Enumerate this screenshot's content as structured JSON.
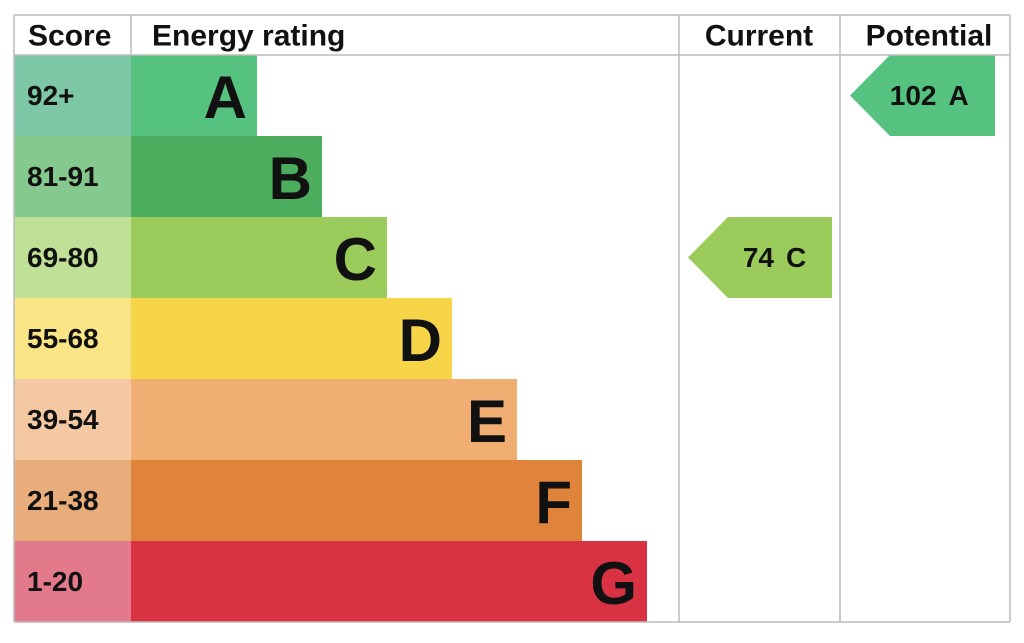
{
  "header": {
    "score": "Score",
    "rating": "Energy rating",
    "current": "Current",
    "potential": "Potential"
  },
  "bands": [
    {
      "range": "92+",
      "letter": "A",
      "color": "#55c27f",
      "score_color": "#7ec7a6"
    },
    {
      "range": "81-91",
      "letter": "B",
      "color": "#4dad5f",
      "score_color": "#86c98f"
    },
    {
      "range": "69-80",
      "letter": "C",
      "color": "#9bcb5a",
      "score_color": "#bfe097"
    },
    {
      "range": "55-68",
      "letter": "D",
      "color": "#f6d548",
      "score_color": "#fae586"
    },
    {
      "range": "39-54",
      "letter": "E",
      "color": "#f0ae72",
      "score_color": "#f4c8a3"
    },
    {
      "range": "21-38",
      "letter": "F",
      "color": "#e0833b",
      "score_color": "#e9ad7b"
    },
    {
      "range": "1-20",
      "letter": "G",
      "color": "#d93343",
      "score_color": "#e27a8b"
    }
  ],
  "current": {
    "score": 74,
    "rating": "C"
  },
  "potential": {
    "score": 102,
    "rating": "A"
  }
}
